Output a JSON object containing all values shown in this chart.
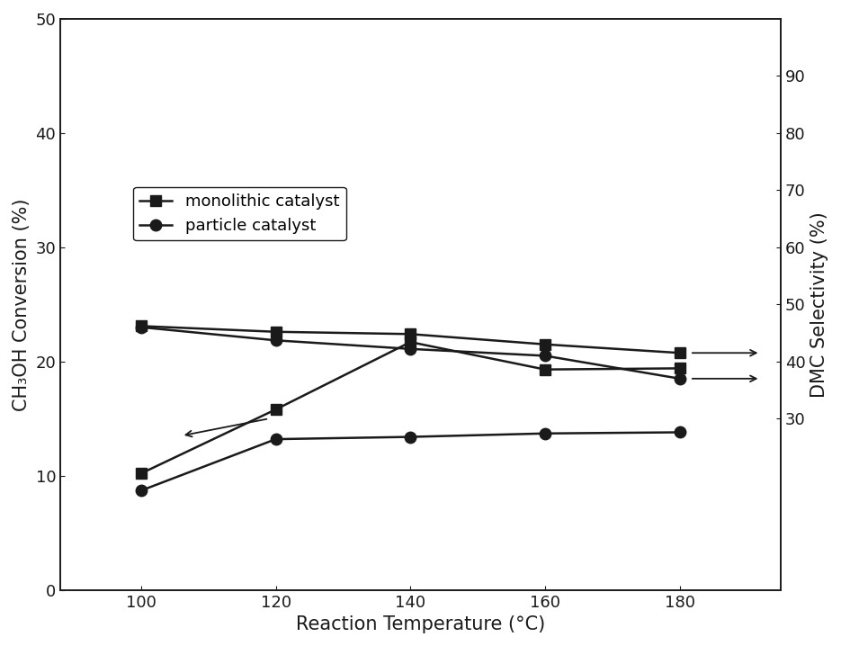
{
  "temperatures": [
    100,
    120,
    140,
    160,
    180
  ],
  "conversion_monolithic": [
    10.2,
    15.8,
    21.7,
    19.3,
    19.4
  ],
  "conversion_particle": [
    8.7,
    13.2,
    13.4,
    13.7,
    13.8
  ],
  "selectivity_monolithic": [
    46.2,
    45.2,
    44.8,
    43.0,
    41.5
  ],
  "selectivity_particle": [
    46.0,
    43.7,
    42.2,
    41.0,
    37.0
  ],
  "xlabel": "Reaction Temperature (°C)",
  "ylabel_left": "CH₃OH Conversion (%)",
  "ylabel_right": "DMC Selectivity (%)",
  "legend_monolithic": "monolithic catalyst",
  "legend_particle": "particle catalyst",
  "xlim": [
    88,
    195
  ],
  "ylim_left": [
    0,
    50
  ],
  "ylim_right": [
    0,
    100
  ],
  "xticks": [
    100,
    120,
    140,
    160,
    180
  ],
  "yticks_left": [
    0,
    10,
    20,
    30,
    40,
    50
  ],
  "yticks_right": [
    30,
    40,
    50,
    60,
    70,
    80,
    90
  ],
  "color": "#1a1a1a",
  "background": "#ffffff",
  "linewidth": 1.8,
  "markersize": 9,
  "fontsize_label": 15,
  "fontsize_tick": 13,
  "fontsize_legend": 13
}
